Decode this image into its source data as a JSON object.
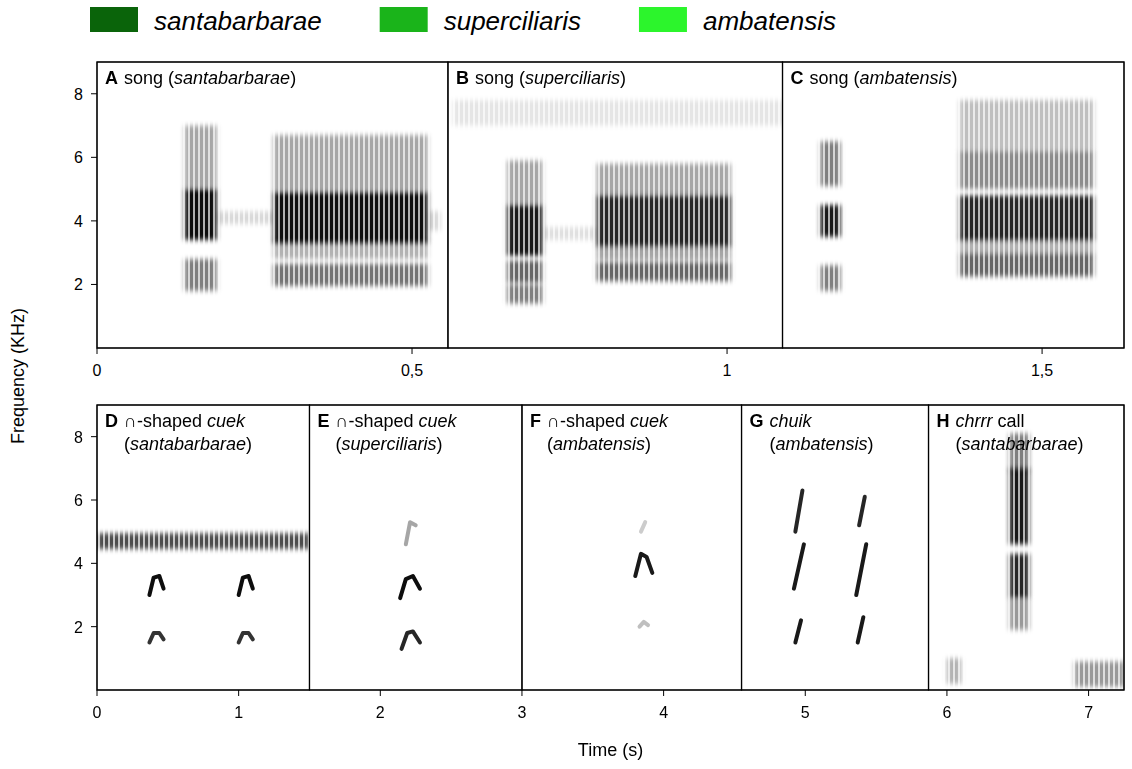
{
  "legend_items": [
    {
      "name": "santabarbarae",
      "color": "#0a640a"
    },
    {
      "name": "superciliaris",
      "color": "#1ab41a"
    },
    {
      "name": "ambatensis",
      "color": "#2cf52c"
    }
  ],
  "y_label": "Frequency (KHz)",
  "chart_data": [
    {
      "type": "spectrogram",
      "xlim": [
        0,
        1.63
      ],
      "ylim": [
        0,
        9
      ],
      "xticks": [
        0,
        {
          "value": 0.5,
          "label": "0,5"
        },
        1,
        {
          "value": 1.5,
          "label": "1,5"
        }
      ],
      "yticks": [
        2,
        4,
        6,
        8
      ],
      "panels": [
        {
          "letter": "A",
          "title_lines": [
            [
              {
                "text": "song ("
              },
              {
                "text": "santabarbarae",
                "italic": true
              },
              {
                "text": ")"
              }
            ]
          ],
          "xstart": 0,
          "xend": 0.557,
          "blocks": [
            {
              "t0": 0.139,
              "t1": 0.19,
              "bands": [
                [
                  4.2,
                  0.8,
                  0.95
                ],
                [
                  6.0,
                  1.0,
                  0.35
                ],
                [
                  2.3,
                  0.5,
                  0.5
                ]
              ]
            },
            {
              "t0": 0.19,
              "t1": 0.28,
              "bands": [
                [
                  4.1,
                  0.2,
                  0.15
                ]
              ]
            },
            {
              "t0": 0.28,
              "t1": 0.525,
              "bands": [
                [
                  4.1,
                  0.8,
                  0.95
                ],
                [
                  5.8,
                  0.9,
                  0.35
                ],
                [
                  2.3,
                  0.35,
                  0.55
                ],
                [
                  3.1,
                  0.3,
                  0.3
                ]
              ]
            },
            {
              "t0": 0.525,
              "t1": 0.545,
              "bands": [
                [
                  4.0,
                  0.3,
                  0.15
                ]
              ]
            }
          ],
          "traces": []
        },
        {
          "letter": "B",
          "title_lines": [
            [
              {
                "text": "song ("
              },
              {
                "text": "superciliaris",
                "italic": true
              },
              {
                "text": ")"
              }
            ]
          ],
          "xstart": 0.557,
          "xend": 1.088,
          "blocks": [
            {
              "t0": 0.565,
              "t1": 1.088,
              "bands": [
                [
                  7.4,
                  0.4,
                  0.1
                ]
              ]
            },
            {
              "t0": 0.651,
              "t1": 0.707,
              "bands": [
                [
                  3.7,
                  0.8,
                  0.9
                ],
                [
                  5.2,
                  0.7,
                  0.35
                ],
                [
                  2.4,
                  0.35,
                  0.6
                ],
                [
                  1.7,
                  0.3,
                  0.5
                ]
              ]
            },
            {
              "t0": 0.707,
              "t1": 0.793,
              "bands": [
                [
                  3.6,
                  0.2,
                  0.12
                ]
              ]
            },
            {
              "t0": 0.793,
              "t1": 1.006,
              "bands": [
                [
                  4.0,
                  0.8,
                  0.85
                ],
                [
                  5.3,
                  0.5,
                  0.35
                ],
                [
                  2.4,
                  0.3,
                  0.6
                ],
                [
                  3.0,
                  0.25,
                  0.35
                ]
              ]
            }
          ],
          "traces": []
        },
        {
          "letter": "C",
          "title_lines": [
            [
              {
                "text": "song ("
              },
              {
                "text": "ambatensis",
                "italic": true
              },
              {
                "text": ")"
              }
            ]
          ],
          "xstart": 1.088,
          "xend": 1.63,
          "blocks": [
            {
              "t0": 1.148,
              "t1": 1.18,
              "bands": [
                [
                  4.0,
                  0.5,
                  0.9
                ],
                [
                  5.8,
                  0.7,
                  0.5
                ],
                [
                  2.2,
                  0.4,
                  0.5
                ]
              ]
            },
            {
              "t0": 1.369,
              "t1": 1.582,
              "bands": [
                [
                  4.1,
                  0.7,
                  0.85
                ],
                [
                  5.6,
                  0.6,
                  0.45
                ],
                [
                  7.0,
                  0.8,
                  0.25
                ],
                [
                  2.6,
                  0.35,
                  0.6
                ],
                [
                  3.2,
                  0.3,
                  0.3
                ]
              ]
            }
          ],
          "traces": []
        }
      ]
    },
    {
      "type": "spectrogram",
      "xlabel": "Time (s)",
      "xlim": [
        0,
        7.25
      ],
      "ylim": [
        0,
        9
      ],
      "xticks": [
        0,
        1,
        2,
        3,
        4,
        5,
        6,
        7
      ],
      "yticks": [
        2,
        4,
        6,
        8
      ],
      "panels": [
        {
          "letter": "D",
          "title_lines": [
            [
              {
                "text": "∩-shaped "
              },
              {
                "text": "cuek",
                "italic": true
              }
            ],
            [
              {
                "text": "("
              },
              {
                "text": "santabarbarae",
                "italic": true
              },
              {
                "text": ")"
              }
            ]
          ],
          "xstart": 0,
          "xend": 1.5,
          "blocks": [
            {
              "t0": 0,
              "t1": 1.5,
              "bands": [
                [
                  4.7,
                  0.25,
                  0.7
                ]
              ]
            }
          ],
          "traces": [
            {
              "points": [
                [
                  0.37,
                  3.0
                ],
                [
                  0.4,
                  3.55
                ],
                [
                  0.44,
                  3.6
                ],
                [
                  0.47,
                  3.2
                ]
              ],
              "intensity": 0.95
            },
            {
              "points": [
                [
                  0.37,
                  1.5
                ],
                [
                  0.4,
                  1.8
                ],
                [
                  0.44,
                  1.8
                ],
                [
                  0.47,
                  1.6
                ]
              ],
              "intensity": 0.8
            },
            {
              "points": [
                [
                  1.0,
                  3.0
                ],
                [
                  1.03,
                  3.55
                ],
                [
                  1.07,
                  3.6
                ],
                [
                  1.1,
                  3.2
                ]
              ],
              "intensity": 0.95
            },
            {
              "points": [
                [
                  1.0,
                  1.5
                ],
                [
                  1.03,
                  1.8
                ],
                [
                  1.07,
                  1.8
                ],
                [
                  1.1,
                  1.6
                ]
              ],
              "intensity": 0.8
            }
          ]
        },
        {
          "letter": "E",
          "title_lines": [
            [
              {
                "text": "∩-shaped "
              },
              {
                "text": "cuek",
                "italic": true
              }
            ],
            [
              {
                "text": "("
              },
              {
                "text": "superciliaris",
                "italic": true
              },
              {
                "text": ")"
              }
            ]
          ],
          "xstart": 1.5,
          "xend": 3.0,
          "blocks": [],
          "traces": [
            {
              "points": [
                [
                  2.14,
                  2.9
                ],
                [
                  2.18,
                  3.5
                ],
                [
                  2.23,
                  3.6
                ],
                [
                  2.28,
                  3.2
                ]
              ],
              "intensity": 0.95
            },
            {
              "points": [
                [
                  2.15,
                  1.3
                ],
                [
                  2.19,
                  1.8
                ],
                [
                  2.23,
                  1.85
                ],
                [
                  2.28,
                  1.5
                ]
              ],
              "intensity": 0.85
            },
            {
              "points": [
                [
                  2.18,
                  4.6
                ],
                [
                  2.21,
                  5.3
                ],
                [
                  2.25,
                  5.2
                ]
              ],
              "intensity": 0.35
            }
          ]
        },
        {
          "letter": "F",
          "title_lines": [
            [
              {
                "text": "∩-shaped "
              },
              {
                "text": "cuek",
                "italic": true
              }
            ],
            [
              {
                "text": "("
              },
              {
                "text": "ambatensis",
                "italic": true
              },
              {
                "text": ")"
              }
            ]
          ],
          "xstart": 3.0,
          "xend": 4.55,
          "blocks": [],
          "traces": [
            {
              "points": [
                [
                  3.8,
                  3.6
                ],
                [
                  3.84,
                  4.3
                ],
                [
                  3.88,
                  4.2
                ],
                [
                  3.92,
                  3.7
                ]
              ],
              "intensity": 0.9
            },
            {
              "points": [
                [
                  3.83,
                  2.0
                ],
                [
                  3.86,
                  2.15
                ],
                [
                  3.89,
                  2.05
                ]
              ],
              "intensity": 0.25
            },
            {
              "points": [
                [
                  3.84,
                  5.0
                ],
                [
                  3.87,
                  5.3
                ]
              ],
              "intensity": 0.2
            }
          ]
        },
        {
          "letter": "G",
          "title_lines": [
            [
              {
                "text": "chuik",
                "italic": true
              }
            ],
            [
              {
                "text": "("
              },
              {
                "text": "ambatensis",
                "italic": true
              },
              {
                "text": ")"
              }
            ]
          ],
          "xstart": 4.55,
          "xend": 5.87,
          "blocks": [],
          "traces": [
            {
              "points": [
                [
                  4.93,
                  1.5
                ],
                [
                  4.97,
                  2.2
                ]
              ],
              "intensity": 0.9
            },
            {
              "points": [
                [
                  4.92,
                  3.2
                ],
                [
                  4.99,
                  4.6
                ]
              ],
              "intensity": 0.9
            },
            {
              "points": [
                [
                  4.93,
                  5.0
                ],
                [
                  4.98,
                  6.3
                ]
              ],
              "intensity": 0.85
            },
            {
              "points": [
                [
                  5.37,
                  1.5
                ],
                [
                  5.41,
                  2.3
                ]
              ],
              "intensity": 0.9
            },
            {
              "points": [
                [
                  5.36,
                  3.0
                ],
                [
                  5.43,
                  4.6
                ]
              ],
              "intensity": 0.9
            },
            {
              "points": [
                [
                  5.38,
                  5.2
                ],
                [
                  5.42,
                  6.1
                ]
              ],
              "intensity": 0.85
            }
          ]
        },
        {
          "letter": "H",
          "title_lines": [
            [
              {
                "text": "chrrr",
                "italic": true
              },
              {
                "text": " call"
              }
            ],
            [
              {
                "text": "("
              },
              {
                "text": "santabarbarae",
                "italic": true
              },
              {
                "text": ")"
              }
            ]
          ],
          "xstart": 5.87,
          "xend": 7.25,
          "blocks": [
            {
              "t0": 6.44,
              "t1": 6.58,
              "bands": [
                [
                  5.8,
                  1.2,
                  0.9
                ],
                [
                  3.6,
                  0.7,
                  0.85
                ],
                [
                  7.5,
                  0.6,
                  0.5
                ],
                [
                  2.4,
                  0.5,
                  0.4
                ]
              ]
            },
            {
              "t0": 6.9,
              "t1": 7.25,
              "bands": [
                [
                  0.5,
                  0.4,
                  0.4
                ]
              ]
            },
            {
              "t0": 6.0,
              "t1": 6.1,
              "bands": [
                [
                  0.6,
                  0.4,
                  0.3
                ]
              ]
            }
          ],
          "traces": []
        }
      ]
    }
  ]
}
